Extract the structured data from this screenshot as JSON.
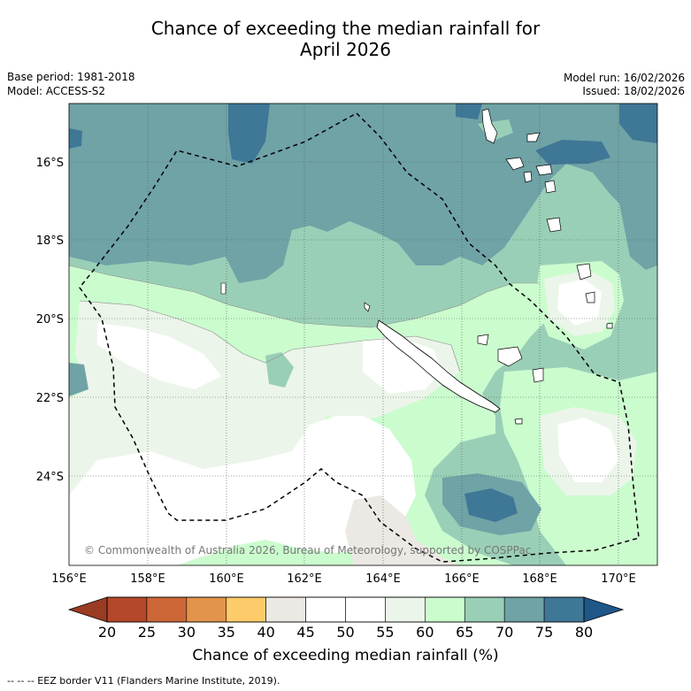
{
  "header": {
    "title_line1": "Chance of exceeding the median rainfall for",
    "title_line2": "April 2026",
    "base_period": "Base period: 1981-2018",
    "model": "Model: ACCESS-S2",
    "model_run": "Model run: 16/02/2026",
    "issued": "Issued: 18/02/2026"
  },
  "map": {
    "lat_labels": [
      "16°S",
      "18°S",
      "20°S",
      "22°S",
      "24°S"
    ],
    "lon_labels": [
      "156°E",
      "158°E",
      "160°E",
      "162°E",
      "164°E",
      "166°E",
      "168°E",
      "170°E"
    ],
    "copyright": "© Commonwealth of Australia 2026, Bureau of Meteorology, supported by COSPPac"
  },
  "colorbar": {
    "ticks": [
      "20",
      "25",
      "30",
      "35",
      "40",
      "45",
      "50",
      "55",
      "60",
      "65",
      "70",
      "75",
      "80"
    ],
    "colors": [
      "#b5472a",
      "#cd6737",
      "#e3934a",
      "#fecb6a",
      "#ece8e4",
      "#ffffff",
      "#ffffff",
      "#ecf5ea",
      "#cbfcce",
      "#9acfb7",
      "#6fa3a6",
      "#3f7796"
    ],
    "low_color": "#9a3b24",
    "high_color": "#1f5789",
    "label": "Chance of exceeding median rainfall (%)"
  },
  "legend": {
    "eez_text": "--  --  -- EEZ border V11 (Flanders Marine Institute, 2019)."
  }
}
